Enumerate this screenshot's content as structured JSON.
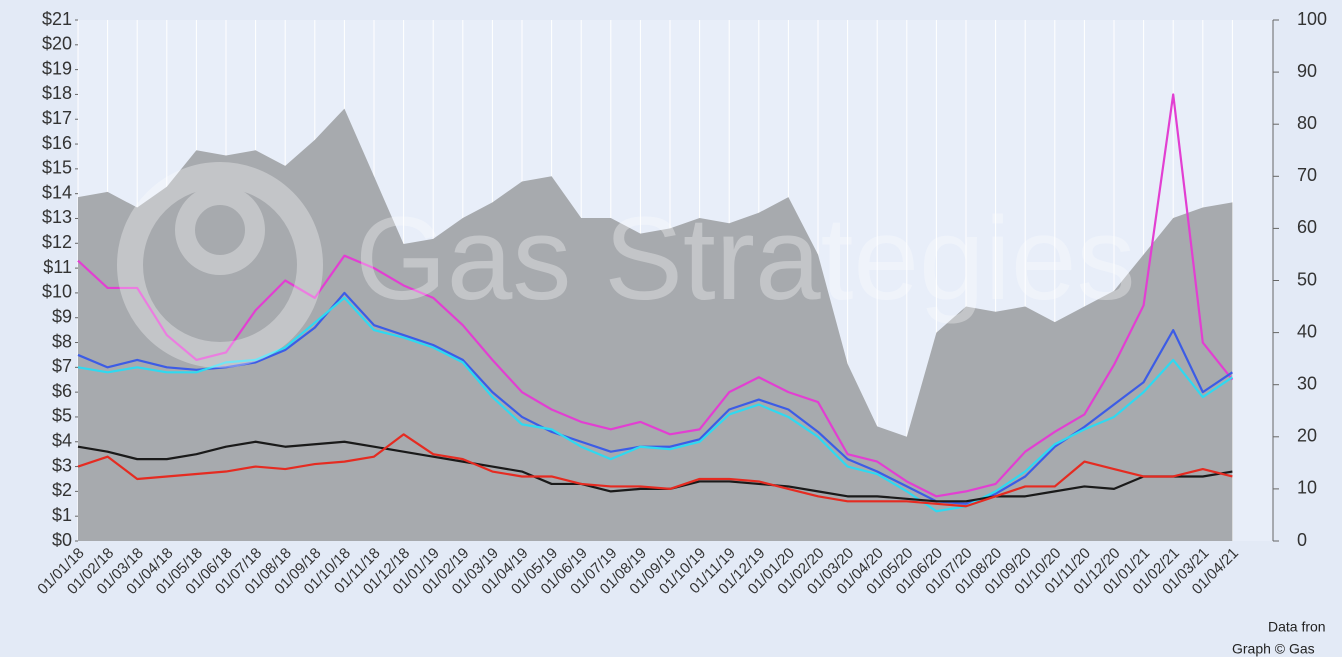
{
  "chart_data": {
    "type": "line",
    "watermark": "Gas Strategies",
    "notes": [
      "Data fron",
      "Graph © Gas"
    ],
    "categories": [
      "01/01/18",
      "01/02/18",
      "01/03/18",
      "01/04/18",
      "01/05/18",
      "01/06/18",
      "01/07/18",
      "01/08/18",
      "01/09/18",
      "01/10/18",
      "01/11/18",
      "01/12/18",
      "01/01/19",
      "01/02/19",
      "01/03/19",
      "01/04/19",
      "01/05/19",
      "01/06/19",
      "01/07/19",
      "01/08/19",
      "01/09/19",
      "01/10/19",
      "01/11/19",
      "01/12/19",
      "01/01/20",
      "01/02/20",
      "01/03/20",
      "01/04/20",
      "01/05/20",
      "01/06/20",
      "01/07/20",
      "01/08/20",
      "01/09/20",
      "01/10/20",
      "01/11/20",
      "01/12/20",
      "01/01/21",
      "01/02/21",
      "01/03/21",
      "01/04/21"
    ],
    "series": [
      {
        "type": "area",
        "axis": "y2",
        "color": "#a7aaae",
        "values": [
          66,
          67,
          64,
          68,
          75,
          74,
          75,
          72,
          77,
          83,
          70,
          57,
          58,
          62,
          65,
          69,
          70,
          62,
          62,
          59,
          60,
          62,
          61,
          63,
          66,
          55,
          34,
          22,
          20,
          40,
          45,
          44,
          45,
          42,
          45,
          48,
          55,
          62,
          64,
          65
        ]
      },
      {
        "color": "#e23fd2",
        "values": [
          11.3,
          10.2,
          10.2,
          8.3,
          7.3,
          7.6,
          9.3,
          10.5,
          9.8,
          11.5,
          11.0,
          10.3,
          9.8,
          8.7,
          7.3,
          6.0,
          5.3,
          4.8,
          4.5,
          4.8,
          4.3,
          4.5,
          6.0,
          6.6,
          6.0,
          5.6,
          3.5,
          3.2,
          2.4,
          1.8,
          2.0,
          2.3,
          3.6,
          4.4,
          5.1,
          7.1,
          9.5,
          18.0,
          8.0,
          6.5
        ]
      },
      {
        "color": "#3c5ce6",
        "values": [
          7.5,
          7.0,
          7.3,
          7.0,
          6.9,
          7.0,
          7.2,
          7.7,
          8.6,
          10.0,
          8.7,
          8.3,
          7.9,
          7.3,
          6.0,
          5.0,
          4.4,
          4.0,
          3.6,
          3.8,
          3.8,
          4.1,
          5.3,
          5.7,
          5.3,
          4.4,
          3.3,
          2.8,
          2.2,
          1.6,
          1.5,
          1.9,
          2.6,
          3.8,
          4.6,
          5.5,
          6.4,
          8.5,
          6.0,
          6.8
        ]
      },
      {
        "color": "#2fd9f0",
        "values": [
          7.0,
          6.8,
          7.0,
          6.8,
          6.8,
          7.2,
          7.3,
          7.8,
          8.8,
          9.8,
          8.5,
          8.2,
          7.8,
          7.2,
          5.8,
          4.7,
          4.5,
          3.8,
          3.3,
          3.8,
          3.7,
          4.0,
          5.1,
          5.5,
          5.0,
          4.2,
          3.0,
          2.7,
          2.0,
          1.2,
          1.4,
          2.0,
          2.8,
          3.9,
          4.5,
          5.0,
          6.0,
          7.3,
          5.8,
          6.6
        ]
      },
      {
        "color": "#1a1a1a",
        "values": [
          3.8,
          3.6,
          3.3,
          3.3,
          3.5,
          3.8,
          4.0,
          3.8,
          3.9,
          4.0,
          3.8,
          3.6,
          3.4,
          3.2,
          3.0,
          2.8,
          2.3,
          2.3,
          2.0,
          2.1,
          2.1,
          2.4,
          2.4,
          2.3,
          2.2,
          2.0,
          1.8,
          1.8,
          1.7,
          1.6,
          1.6,
          1.8,
          1.8,
          2.0,
          2.2,
          2.1,
          2.6,
          2.6,
          2.6,
          2.8
        ]
      },
      {
        "color": "#e52b21",
        "values": [
          3.0,
          3.4,
          2.5,
          2.6,
          2.7,
          2.8,
          3.0,
          2.9,
          3.1,
          3.2,
          3.4,
          4.3,
          3.5,
          3.3,
          2.8,
          2.6,
          2.6,
          2.3,
          2.2,
          2.2,
          2.1,
          2.5,
          2.5,
          2.4,
          2.1,
          1.8,
          1.6,
          1.6,
          1.6,
          1.5,
          1.4,
          1.8,
          2.2,
          2.2,
          3.2,
          2.9,
          2.6,
          2.6,
          2.9,
          2.6
        ]
      }
    ],
    "ylim": [
      0,
      21
    ],
    "yticks": [
      {
        "value": 0,
        "label": "$0"
      },
      {
        "value": 1,
        "label": "$1"
      },
      {
        "value": 2,
        "label": "$2"
      },
      {
        "value": 3,
        "label": "$3"
      },
      {
        "value": 4,
        "label": "$4"
      },
      {
        "value": 5,
        "label": "$5"
      },
      {
        "value": 6,
        "label": "$6"
      },
      {
        "value": 7,
        "label": "$7"
      },
      {
        "value": 8,
        "label": "$8"
      },
      {
        "value": 9,
        "label": "$9"
      },
      {
        "value": 10,
        "label": "$10"
      },
      {
        "value": 11,
        "label": "$11"
      },
      {
        "value": 12,
        "label": "$12"
      },
      {
        "value": 13,
        "label": "$13"
      },
      {
        "value": 14,
        "label": "$14"
      },
      {
        "value": 15,
        "label": "$15"
      },
      {
        "value": 16,
        "label": "$16"
      },
      {
        "value": 17,
        "label": "$17"
      },
      {
        "value": 18,
        "label": "$18"
      },
      {
        "value": 19,
        "label": "$19"
      },
      {
        "value": 20,
        "label": "$20"
      },
      {
        "value": 21,
        "label": "$21"
      }
    ],
    "y2lim": [
      0,
      100
    ],
    "y2ticks": [
      0,
      10,
      20,
      30,
      40,
      50,
      60,
      70,
      80,
      90,
      100
    ]
  }
}
